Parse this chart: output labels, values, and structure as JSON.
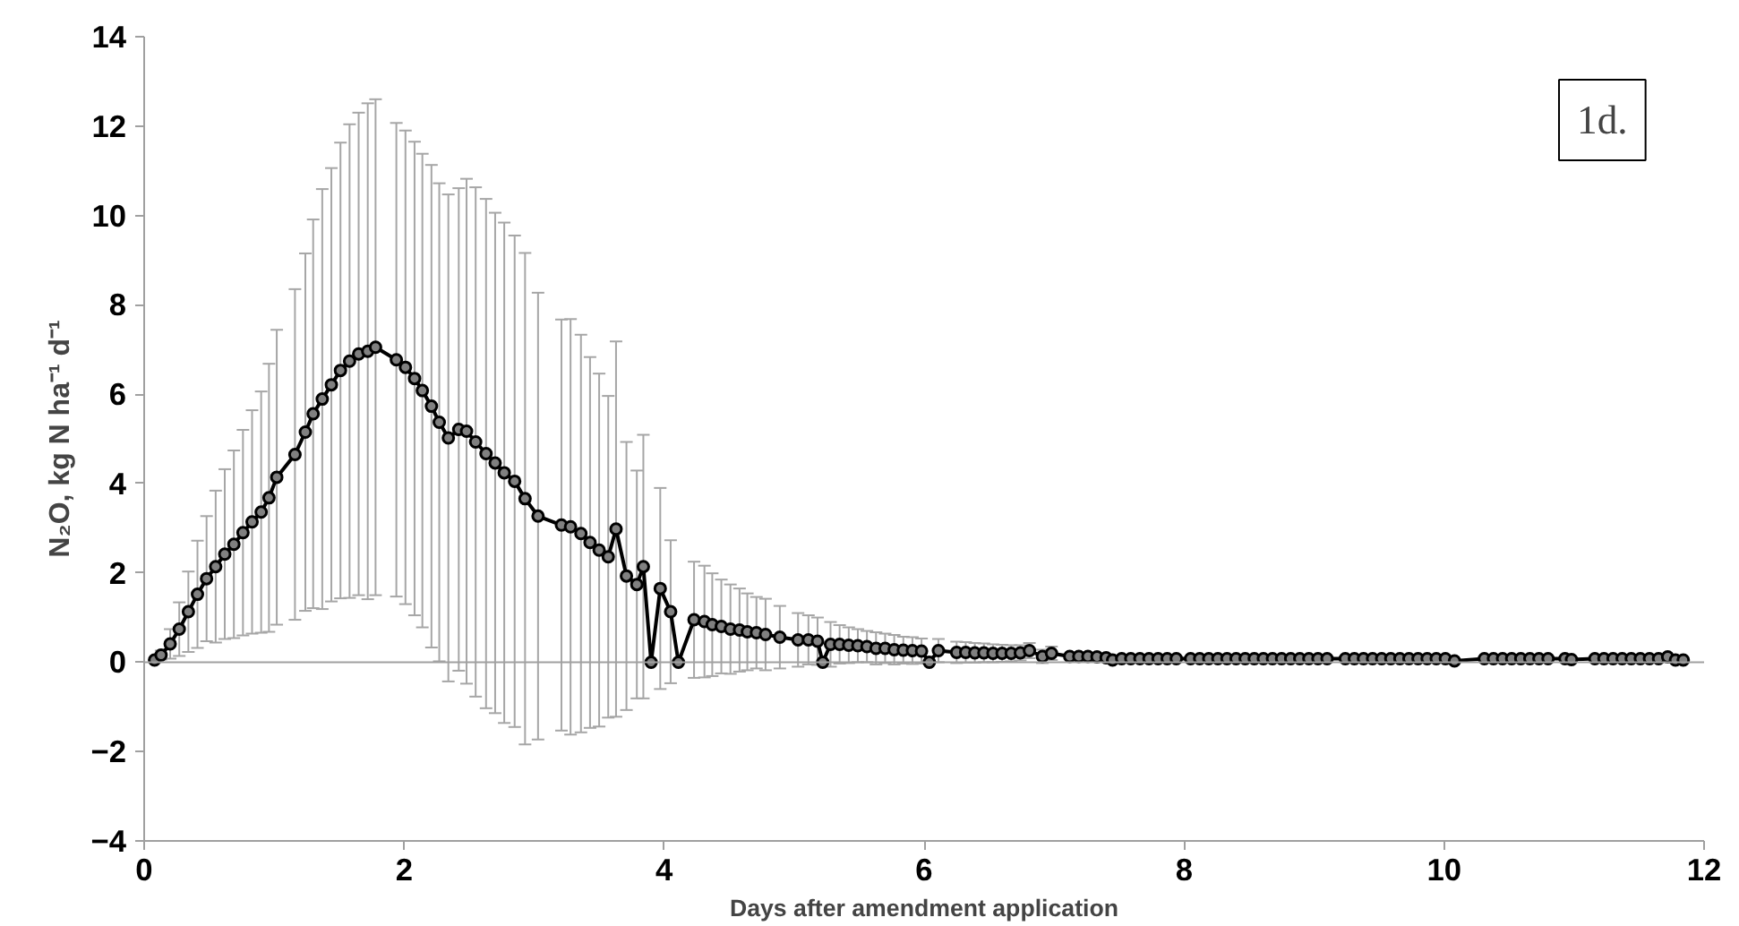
{
  "chart_data": {
    "type": "line",
    "xlabel": "Days after amendment application",
    "ylabel": "N₂O, kg N ha⁻¹ d⁻¹",
    "annotations": [
      "1d."
    ],
    "xlim": [
      0,
      12
    ],
    "ylim": [
      -4,
      14
    ],
    "xticks": [
      0,
      2,
      4,
      6,
      8,
      10,
      12
    ],
    "yticks": [
      -4,
      -2,
      0,
      2,
      4,
      6,
      8,
      10,
      12,
      14
    ],
    "grid": false,
    "marker": "circle",
    "line_style": "solid",
    "series": [
      {
        "color": "#000000",
        "x": [
          0.08,
          0.13,
          0.2,
          0.27,
          0.34,
          0.41,
          0.48,
          0.55,
          0.62,
          0.69,
          0.76,
          0.83,
          0.9,
          0.96,
          1.02,
          1.16,
          1.24,
          1.3,
          1.37,
          1.44,
          1.51,
          1.58,
          1.65,
          1.72,
          1.78,
          1.94,
          2.01,
          2.08,
          2.14,
          2.21,
          2.27,
          2.34,
          2.42,
          2.48,
          2.55,
          2.63,
          2.7,
          2.77,
          2.85,
          2.93,
          3.03,
          3.21,
          3.28,
          3.36,
          3.43,
          3.5,
          3.57,
          3.63,
          3.71,
          3.79,
          3.84,
          3.9,
          3.97,
          4.05,
          4.11,
          4.23,
          4.31,
          4.37,
          4.44,
          4.51,
          4.58,
          4.64,
          4.71,
          4.78,
          4.89,
          5.03,
          5.11,
          5.18,
          5.22,
          5.28,
          5.35,
          5.42,
          5.49,
          5.56,
          5.63,
          5.7,
          5.77,
          5.84,
          5.91,
          5.98,
          6.04,
          6.11,
          6.25,
          6.32,
          6.39,
          6.46,
          6.53,
          6.6,
          6.67,
          6.74,
          6.81,
          6.91,
          6.98,
          7.12,
          7.19,
          7.26,
          7.33,
          7.4,
          7.45,
          7.52,
          7.59,
          7.66,
          7.73,
          7.8,
          7.87,
          7.94,
          8.05,
          8.12,
          8.19,
          8.26,
          8.33,
          8.4,
          8.47,
          8.54,
          8.61,
          8.68,
          8.75,
          8.82,
          8.89,
          8.96,
          9.03,
          9.1,
          9.24,
          9.31,
          9.38,
          9.45,
          9.52,
          9.59,
          9.66,
          9.73,
          9.8,
          9.87,
          9.94,
          10.01,
          10.08,
          10.31,
          10.38,
          10.45,
          10.52,
          10.59,
          10.66,
          10.73,
          10.8,
          10.93,
          10.98,
          11.16,
          11.23,
          11.3,
          11.37,
          11.44,
          11.51,
          11.58,
          11.65,
          11.72,
          11.78,
          11.84
        ],
        "values": [
          0.05,
          0.16,
          0.41,
          0.74,
          1.13,
          1.52,
          1.87,
          2.14,
          2.42,
          2.64,
          2.9,
          3.14,
          3.36,
          3.68,
          4.14,
          4.65,
          5.15,
          5.56,
          5.89,
          6.21,
          6.53,
          6.74,
          6.9,
          6.96,
          7.05,
          6.77,
          6.6,
          6.35,
          6.08,
          5.73,
          5.37,
          5.02,
          5.21,
          5.17,
          4.93,
          4.67,
          4.46,
          4.24,
          4.05,
          3.66,
          3.27,
          3.07,
          3.03,
          2.88,
          2.68,
          2.51,
          2.36,
          2.98,
          1.93,
          1.74,
          2.14,
          0,
          1.65,
          1.13,
          0,
          0.95,
          0.91,
          0.84,
          0.8,
          0.74,
          0.72,
          0.68,
          0.66,
          0.62,
          0.56,
          0.5,
          0.5,
          0.47,
          0,
          0.4,
          0.4,
          0.38,
          0.37,
          0.35,
          0.31,
          0.31,
          0.28,
          0.27,
          0.26,
          0.25,
          0,
          0.26,
          0.22,
          0.22,
          0.21,
          0.21,
          0.2,
          0.2,
          0.2,
          0.21,
          0.26,
          0.13,
          0.2,
          0.13,
          0.13,
          0.13,
          0.12,
          0.1,
          0.05,
          0.08,
          0.08,
          0.08,
          0.08,
          0.08,
          0.08,
          0.08,
          0.08,
          0.08,
          0.08,
          0.08,
          0.08,
          0.08,
          0.08,
          0.08,
          0.08,
          0.08,
          0.08,
          0.08,
          0.08,
          0.08,
          0.08,
          0.08,
          0.08,
          0.08,
          0.08,
          0.08,
          0.08,
          0.08,
          0.08,
          0.08,
          0.08,
          0.08,
          0.08,
          0.08,
          0.03,
          0.08,
          0.08,
          0.08,
          0.08,
          0.08,
          0.08,
          0.08,
          0.08,
          0.08,
          0.06,
          0.08,
          0.08,
          0.08,
          0.08,
          0.08,
          0.08,
          0.08,
          0.08,
          0.12,
          0.05,
          0.05
        ],
        "errors": [
          0,
          0.1,
          0.33,
          0.6,
          0.9,
          1.2,
          1.4,
          1.7,
          1.9,
          2.1,
          2.3,
          2.5,
          2.7,
          3.0,
          3.3,
          3.7,
          4.0,
          4.35,
          4.7,
          4.85,
          5.1,
          5.3,
          5.4,
          5.55,
          5.55,
          5.3,
          5.3,
          5.3,
          5.3,
          5.4,
          5.35,
          5.45,
          5.4,
          5.65,
          5.7,
          5.7,
          5.6,
          5.6,
          5.5,
          5.5,
          5.0,
          4.6,
          4.65,
          4.45,
          4.15,
          3.95,
          3.6,
          4.2,
          3.0,
          2.55,
          2.95,
          null,
          2.25,
          1.6,
          null,
          1.3,
          1.25,
          1.15,
          1.05,
          1.0,
          0.93,
          0.86,
          0.8,
          0.8,
          0.7,
          0.6,
          0.55,
          0.53,
          null,
          0.5,
          0.43,
          0.4,
          0.37,
          0.35,
          0.36,
          0.33,
          0.33,
          0.3,
          0.3,
          0.28,
          null,
          0.26,
          0.24,
          0.23,
          0.22,
          0.21,
          0.2,
          0.19,
          0.18,
          0.17,
          0.17,
          0.15,
          0.15,
          null,
          null,
          null,
          null,
          null,
          null,
          null,
          null,
          null,
          null,
          null,
          null,
          null,
          null,
          null,
          null,
          null,
          null,
          null,
          null,
          null,
          null,
          null,
          null,
          null,
          null,
          null,
          null,
          null,
          null,
          null,
          null,
          null,
          null,
          null,
          null,
          null,
          null,
          null,
          null,
          null,
          null,
          null,
          null,
          null,
          null,
          null,
          null,
          null,
          null,
          null,
          null,
          null,
          null,
          null,
          null,
          null,
          null,
          null,
          null,
          null,
          null,
          null
        ]
      }
    ],
    "ref_lines": [
      {
        "axis": "y",
        "value": 0,
        "color": "#a0a0a0"
      }
    ]
  }
}
